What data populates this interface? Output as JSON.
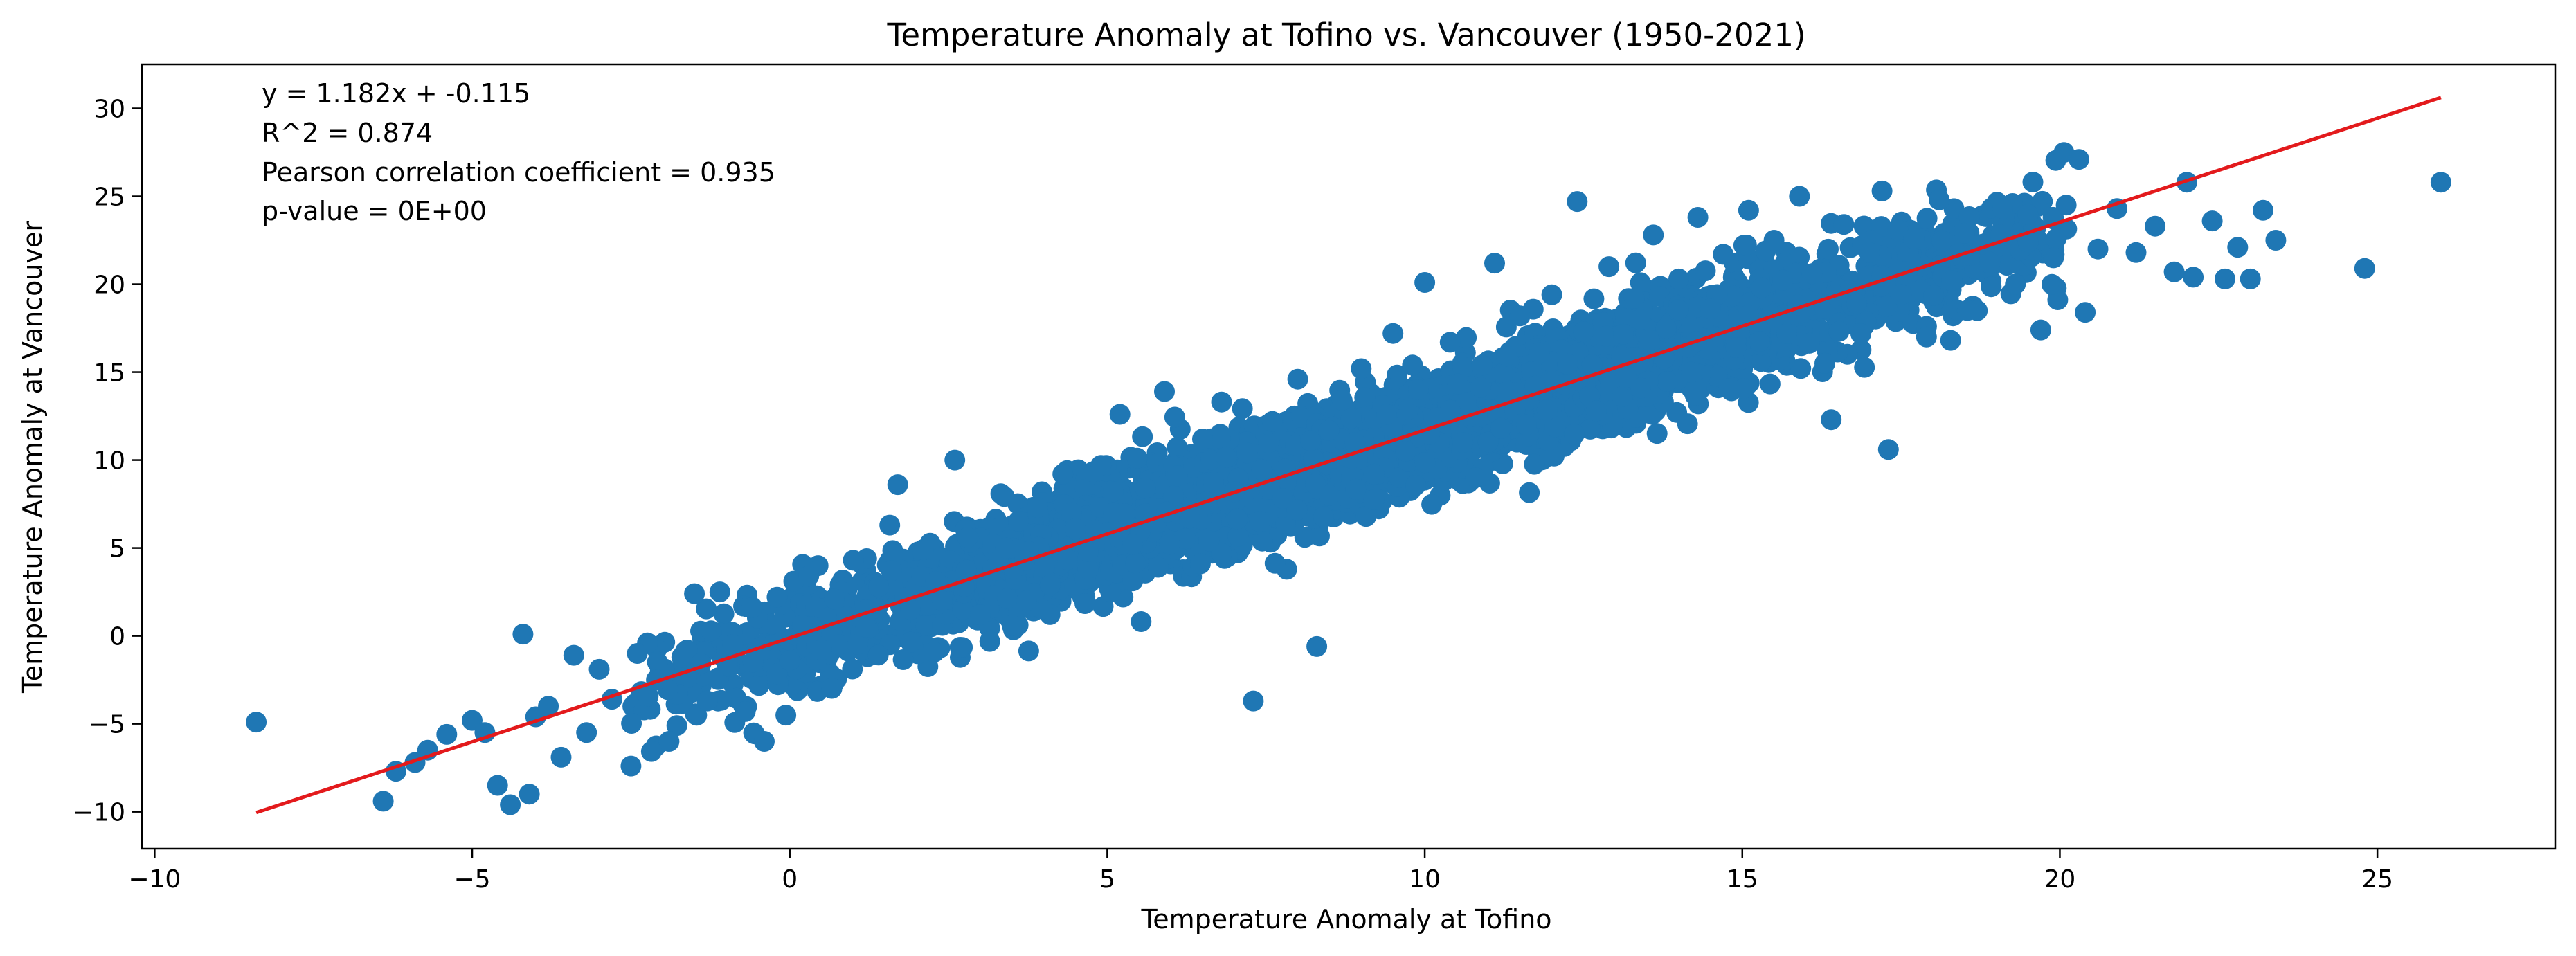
{
  "chart_data": {
    "type": "scatter",
    "title": "Temperature Anomaly at Tofino vs. Vancouver (1950-2021)",
    "xlabel": "Temperature Anomaly at Tofino",
    "ylabel": "Temperature Anomaly at Vancouver",
    "xlim": [
      -10.2,
      27.8
    ],
    "ylim": [
      -12.1,
      32.5
    ],
    "x_ticks": [
      -10,
      -5,
      0,
      5,
      10,
      15,
      20,
      25
    ],
    "x_tick_labels": [
      "−10",
      "−5",
      "0",
      "5",
      "10",
      "15",
      "20",
      "25"
    ],
    "y_ticks": [
      -10,
      -5,
      0,
      5,
      10,
      15,
      20,
      25,
      30
    ],
    "y_tick_labels": [
      "−10",
      "−5",
      "0",
      "5",
      "10",
      "15",
      "20",
      "25",
      "30"
    ],
    "grid": false,
    "colors": {
      "points": "#1f77b4",
      "fit_line": "#e31a1c"
    },
    "series": [
      {
        "values": [
          [
            -8.4,
            -4.9
          ],
          [
            -6.4,
            -9.4
          ],
          [
            -6.2,
            -7.7
          ],
          [
            -5.9,
            -7.2
          ],
          [
            -5.7,
            -6.5
          ],
          [
            -5.4,
            -5.6
          ],
          [
            -5.0,
            -4.8
          ],
          [
            -4.8,
            -5.5
          ],
          [
            -4.6,
            -8.5
          ],
          [
            -4.4,
            -9.6
          ],
          [
            -4.2,
            0.1
          ],
          [
            -4.1,
            -9.0
          ],
          [
            -4.0,
            -4.6
          ],
          [
            -3.8,
            -4.0
          ],
          [
            -3.6,
            -6.9
          ],
          [
            -3.4,
            -1.1
          ],
          [
            -3.2,
            -5.5
          ],
          [
            -3.0,
            -1.9
          ],
          [
            -2.8,
            -3.6
          ],
          [
            -2.5,
            -7.4
          ],
          [
            -2.4,
            -1.0
          ],
          [
            -2.1,
            -2.5
          ],
          [
            -1.9,
            -6.0
          ],
          [
            -1.7,
            -1.2
          ],
          [
            -1.5,
            2.4
          ],
          [
            -1.3,
            -3.7
          ],
          [
            -1.1,
            2.5
          ],
          [
            -0.9,
            -0.5
          ],
          [
            -0.7,
            -4.3
          ],
          [
            -0.6,
            1.6
          ],
          [
            -0.4,
            -6.0
          ],
          [
            -0.2,
            2.2
          ],
          [
            0.0,
            -1.4
          ],
          [
            0.2,
            0.6
          ],
          [
            0.3,
            3.4
          ],
          [
            0.5,
            -0.8
          ],
          [
            0.7,
            2.1
          ],
          [
            0.9,
            1.1
          ],
          [
            1.0,
            4.3
          ],
          [
            1.2,
            0.5
          ],
          [
            1.4,
            2.8
          ],
          [
            1.6,
            3.7
          ],
          [
            1.7,
            8.6
          ],
          [
            1.9,
            1.5
          ],
          [
            2.1,
            4.9
          ],
          [
            2.3,
            3.1
          ],
          [
            2.4,
            2.0
          ],
          [
            2.6,
            10.0
          ],
          [
            2.8,
            5.6
          ],
          [
            3.0,
            1.2
          ],
          [
            3.2,
            3.8
          ],
          [
            3.4,
            5.0
          ],
          [
            3.5,
            0.6
          ],
          [
            3.7,
            4.3
          ],
          [
            3.9,
            7.3
          ],
          [
            4.1,
            2.9
          ],
          [
            4.3,
            9.2
          ],
          [
            4.5,
            6.1
          ],
          [
            4.7,
            4.8
          ],
          [
            4.9,
            9.7
          ],
          [
            5.1,
            7.0
          ],
          [
            5.2,
            12.6
          ],
          [
            5.4,
            5.2
          ],
          [
            5.6,
            8.4
          ],
          [
            5.8,
            3.9
          ],
          [
            5.9,
            13.9
          ],
          [
            6.1,
            9.1
          ],
          [
            6.3,
            6.7
          ],
          [
            6.5,
            11.2
          ],
          [
            6.6,
            5.4
          ],
          [
            6.8,
            13.3
          ],
          [
            7.0,
            8.2
          ],
          [
            7.2,
            10.4
          ],
          [
            7.3,
            -3.7
          ],
          [
            7.4,
            6.5
          ],
          [
            7.6,
            12.2
          ],
          [
            7.8,
            9.5
          ],
          [
            8.0,
            14.6
          ],
          [
            8.2,
            11.1
          ],
          [
            8.3,
            -0.6
          ],
          [
            8.5,
            8.0
          ],
          [
            8.7,
            13.4
          ],
          [
            8.9,
            11.0
          ],
          [
            9.0,
            15.2
          ],
          [
            9.2,
            9.2
          ],
          [
            9.4,
            12.6
          ],
          [
            9.5,
            17.2
          ],
          [
            9.7,
            10.5
          ],
          [
            9.9,
            14.0
          ],
          [
            10.0,
            20.1
          ],
          [
            10.2,
            12.4
          ],
          [
            10.4,
            16.7
          ],
          [
            10.6,
            11.0
          ],
          [
            10.8,
            9.0
          ],
          [
            10.9,
            15.4
          ],
          [
            11.1,
            21.2
          ],
          [
            11.3,
            13.9
          ],
          [
            11.5,
            18.2
          ],
          [
            11.6,
            12.0
          ],
          [
            11.8,
            16.1
          ],
          [
            12.0,
            19.4
          ],
          [
            12.2,
            14.3
          ],
          [
            12.4,
            24.7
          ],
          [
            12.5,
            17.3
          ],
          [
            12.7,
            12.8
          ],
          [
            12.9,
            21.0
          ],
          [
            13.1,
            15.9
          ],
          [
            13.3,
            19.2
          ],
          [
            13.4,
            14.1
          ],
          [
            13.6,
            22.8
          ],
          [
            13.8,
            17.5
          ],
          [
            14.0,
            20.3
          ],
          [
            14.2,
            15.0
          ],
          [
            14.3,
            23.8
          ],
          [
            14.5,
            18.6
          ],
          [
            14.7,
            21.7
          ],
          [
            14.9,
            16.4
          ],
          [
            15.1,
            24.2
          ],
          [
            15.3,
            19.8
          ],
          [
            15.5,
            22.5
          ],
          [
            15.7,
            17.2
          ],
          [
            15.9,
            25.0
          ],
          [
            16.1,
            20.6
          ],
          [
            16.3,
            15.5
          ],
          [
            16.4,
            12.3
          ],
          [
            16.6,
            23.4
          ],
          [
            16.8,
            18.9
          ],
          [
            17.0,
            21.8
          ],
          [
            17.2,
            25.3
          ],
          [
            17.3,
            10.6
          ],
          [
            17.5,
            19.4
          ],
          [
            17.7,
            22.6
          ],
          [
            17.9,
            17.0
          ],
          [
            18.1,
            24.8
          ],
          [
            18.3,
            20.2
          ],
          [
            18.5,
            22.9
          ],
          [
            18.7,
            18.5
          ],
          [
            18.9,
            21.2
          ],
          [
            19.1,
            24.3
          ],
          [
            19.3,
            20.0
          ],
          [
            19.5,
            22.4
          ],
          [
            19.7,
            17.4
          ],
          [
            19.9,
            21.5
          ],
          [
            20.1,
            24.5
          ],
          [
            20.3,
            27.1
          ],
          [
            20.4,
            18.4
          ],
          [
            20.6,
            22.0
          ],
          [
            20.9,
            24.3
          ],
          [
            21.2,
            21.8
          ],
          [
            21.5,
            23.3
          ],
          [
            21.8,
            20.7
          ],
          [
            22.0,
            25.8
          ],
          [
            22.1,
            20.4
          ],
          [
            22.4,
            23.6
          ],
          [
            22.6,
            20.3
          ],
          [
            22.8,
            22.1
          ],
          [
            23.0,
            20.3
          ],
          [
            23.2,
            24.2
          ],
          [
            23.4,
            22.5
          ],
          [
            24.8,
            20.9
          ],
          [
            26.0,
            25.8
          ]
        ]
      }
    ],
    "cloud": {
      "n": 4200,
      "x_range": [
        -2.5,
        20.2
      ],
      "slope": 1.182,
      "intercept": -0.115,
      "residual_sd": 1.6
    },
    "fit_line": {
      "slope": 1.182,
      "intercept": -0.115,
      "x_range": [
        -8.4,
        26.0
      ]
    },
    "annotations": [
      "y = 1.182x + -0.115",
      "R^2 = 0.874",
      "Pearson correlation coefficient = 0.935",
      "p-value = 0E+00"
    ]
  }
}
